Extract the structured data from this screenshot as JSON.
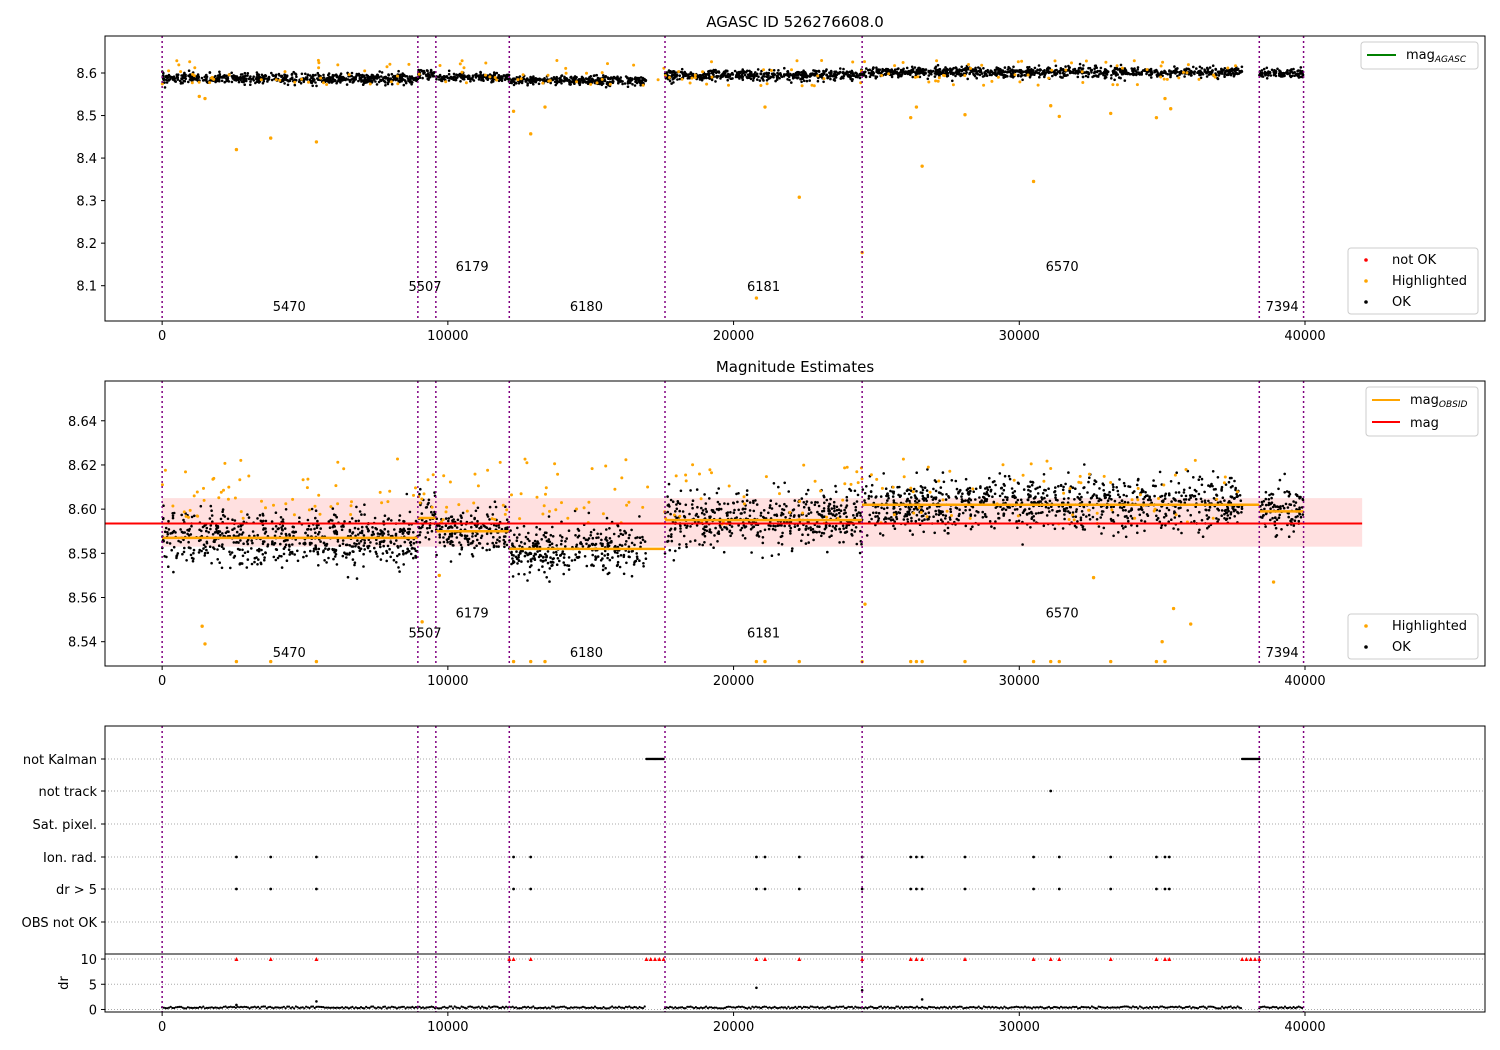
{
  "chart_data": [
    {
      "type": "scatter",
      "title": "AGASC ID 526276608.0",
      "xlim": [
        -2000,
        46300
      ],
      "ylim": [
        8.017,
        8.687
      ],
      "x_ticks": [
        0,
        10000,
        20000,
        30000,
        40000
      ],
      "y_ticks": [
        8.1,
        8.2,
        8.3,
        8.4,
        8.5,
        8.6
      ],
      "obsid_boundaries": [
        0,
        8950,
        9580,
        12150,
        17600,
        24500,
        38400,
        39950
      ],
      "obsid_labels": [
        {
          "obsid": "5470",
          "x": 4450,
          "y": 8.04
        },
        {
          "obsid": "5507",
          "x": 9200,
          "y": 8.087
        },
        {
          "obsid": "6179",
          "x": 10850,
          "y": 8.135
        },
        {
          "obsid": "6180",
          "x": 14850,
          "y": 8.04
        },
        {
          "obsid": "6181",
          "x": 21050,
          "y": 8.087
        },
        {
          "obsid": "6570",
          "x": 31500,
          "y": 8.135
        },
        {
          "obsid": "7394",
          "x": 39200,
          "y": 8.04
        }
      ],
      "series": [
        {
          "name": "not OK",
          "color": "#ff0000",
          "points": []
        },
        {
          "name": "Highlighted",
          "color": "#ffa500",
          "points": [
            [
              2600,
              8.42
            ],
            [
              3800,
              8.447
            ],
            [
              5400,
              8.438
            ],
            [
              1300,
              8.545
            ],
            [
              1500,
              8.54
            ],
            [
              12300,
              8.51
            ],
            [
              12900,
              8.457
            ],
            [
              13400,
              8.52
            ],
            [
              21100,
              8.52
            ],
            [
              22300,
              8.308
            ],
            [
              20800,
              8.071
            ],
            [
              24500,
              8.178
            ],
            [
              26200,
              8.495
            ],
            [
              26400,
              8.52
            ],
            [
              26600,
              8.381
            ],
            [
              28100,
              8.502
            ],
            [
              30500,
              8.345
            ],
            [
              31100,
              8.523
            ],
            [
              31400,
              8.498
            ],
            [
              33200,
              8.505
            ],
            [
              34800,
              8.495
            ],
            [
              35100,
              8.54
            ],
            [
              35300,
              8.516
            ]
          ]
        },
        {
          "name": "OK",
          "color": "#000000",
          "segments": [
            {
              "x0": 0,
              "x1": 8950,
              "mean": 8.587,
              "spread": 0.01
            },
            {
              "x0": 8950,
              "x1": 9580,
              "mean": 8.597,
              "spread": 0.01
            },
            {
              "x0": 9580,
              "x1": 12150,
              "mean": 8.59,
              "spread": 0.008
            },
            {
              "x0": 12150,
              "x1": 16950,
              "mean": 8.582,
              "spread": 0.009
            },
            {
              "x0": 17600,
              "x1": 24500,
              "mean": 8.595,
              "spread": 0.01
            },
            {
              "x0": 24500,
              "x1": 37800,
              "mean": 8.602,
              "spread": 0.01
            },
            {
              "x0": 38400,
              "x1": 39950,
              "mean": 8.599,
              "spread": 0.009
            }
          ]
        }
      ],
      "legends": [
        {
          "position": "upper-right",
          "entries": [
            "mag_AGASC"
          ]
        },
        {
          "position": "lower-right",
          "entries": [
            "not OK",
            "Highlighted",
            "OK"
          ]
        }
      ],
      "lines": [
        {
          "name": "mag_AGASC",
          "color": "#008000"
        }
      ]
    },
    {
      "type": "scatter",
      "title": "Magnitude Estimates",
      "xlim": [
        -2000,
        46300
      ],
      "ylim": [
        8.529,
        8.658
      ],
      "x_ticks": [
        0,
        10000,
        20000,
        30000,
        40000
      ],
      "y_ticks": [
        8.54,
        8.56,
        8.58,
        8.6,
        8.62,
        8.64
      ],
      "obsid_boundaries": [
        0,
        8950,
        9580,
        12150,
        17600,
        24500,
        38400,
        39950
      ],
      "obsid_labels": [
        {
          "obsid": "5470",
          "x": 4450,
          "y": 8.533
        },
        {
          "obsid": "5507",
          "x": 9200,
          "y": 8.542
        },
        {
          "obsid": "6179",
          "x": 10850,
          "y": 8.551
        },
        {
          "obsid": "6180",
          "x": 14850,
          "y": 8.533
        },
        {
          "obsid": "6181",
          "x": 21050,
          "y": 8.542
        },
        {
          "obsid": "6570",
          "x": 31500,
          "y": 8.551
        },
        {
          "obsid": "7394",
          "x": 39200,
          "y": 8.533
        }
      ],
      "mag": 8.5935,
      "mag_band": [
        8.583,
        8.605
      ],
      "mag_band_xlim": [
        0,
        42000
      ],
      "mag_obsid": [
        {
          "x0": 0,
          "x1": 8950,
          "value": 8.587
        },
        {
          "x0": 8950,
          "x1": 9580,
          "value": 8.596
        },
        {
          "x0": 9580,
          "x1": 12150,
          "value": 8.59
        },
        {
          "x0": 12150,
          "x1": 17600,
          "value": 8.582
        },
        {
          "x0": 17600,
          "x1": 24500,
          "value": 8.595
        },
        {
          "x0": 24500,
          "x1": 38400,
          "value": 8.602
        },
        {
          "x0": 38400,
          "x1": 39950,
          "value": 8.599
        }
      ],
      "series": [
        {
          "name": "Highlighted",
          "color": "#ffa500",
          "points": [
            [
              1400,
              8.547
            ],
            [
              1500,
              8.539
            ],
            [
              2600,
              8.531
            ],
            [
              3800,
              8.531
            ],
            [
              5400,
              8.531
            ],
            [
              9100,
              8.549
            ],
            [
              9700,
              8.57
            ],
            [
              12300,
              8.531
            ],
            [
              12900,
              8.531
            ],
            [
              13400,
              8.531
            ],
            [
              20800,
              8.531
            ],
            [
              21100,
              8.531
            ],
            [
              22300,
              8.531
            ],
            [
              24500,
              8.531
            ],
            [
              24600,
              8.557
            ],
            [
              26200,
              8.531
            ],
            [
              26400,
              8.531
            ],
            [
              26600,
              8.531
            ],
            [
              28100,
              8.531
            ],
            [
              30500,
              8.531
            ],
            [
              31100,
              8.531
            ],
            [
              31400,
              8.531
            ],
            [
              33200,
              8.531
            ],
            [
              34800,
              8.531
            ],
            [
              35100,
              8.531
            ],
            [
              35000,
              8.54
            ],
            [
              35400,
              8.555
            ],
            [
              36000,
              8.548
            ],
            [
              32600,
              8.569
            ],
            [
              38900,
              8.567
            ]
          ]
        },
        {
          "name": "OK",
          "color": "#000000",
          "segments": [
            {
              "x0": 0,
              "x1": 8950,
              "mean": 8.587,
              "spread": 0.01
            },
            {
              "x0": 8950,
              "x1": 9580,
              "mean": 8.597,
              "spread": 0.01
            },
            {
              "x0": 9580,
              "x1": 12150,
              "mean": 8.59,
              "spread": 0.008
            },
            {
              "x0": 12150,
              "x1": 16950,
              "mean": 8.582,
              "spread": 0.009
            },
            {
              "x0": 17600,
              "x1": 24500,
              "mean": 8.595,
              "spread": 0.01
            },
            {
              "x0": 24500,
              "x1": 37800,
              "mean": 8.602,
              "spread": 0.01
            },
            {
              "x0": 38400,
              "x1": 39950,
              "mean": 8.599,
              "spread": 0.009
            }
          ]
        }
      ],
      "legends": [
        {
          "position": "upper-right",
          "entries": [
            "mag_OBSID",
            "mag"
          ]
        },
        {
          "position": "lower-right",
          "entries": [
            "Highlighted",
            "OK"
          ]
        }
      ],
      "lines": [
        {
          "name": "mag_OBSID",
          "color": "#ffa500"
        },
        {
          "name": "mag",
          "color": "#ff0000"
        }
      ]
    },
    {
      "type": "scatter",
      "title": "",
      "xlim": [
        -2000,
        46300
      ],
      "x_ticks": [
        0,
        10000,
        20000,
        30000,
        40000
      ],
      "flag_rows": [
        "not Kalman",
        "not track",
        "Sat. pixel.",
        "Ion. rad.",
        "dr > 5",
        "OBS not OK"
      ],
      "obsid_boundaries": [
        0,
        8950,
        9580,
        12150,
        17600,
        24500,
        38400,
        39950
      ],
      "flags": {
        "not Kalman": [
          [
            16950,
            17550
          ],
          [
            37800,
            38400
          ]
        ],
        "not track": [
          31100
        ],
        "Sat. pixel.": [],
        "Ion. rad.": [
          2600,
          3800,
          5400,
          12300,
          12900,
          20800,
          21100,
          22300,
          24500,
          26200,
          26400,
          26600,
          28100,
          30500,
          31400,
          33200,
          34800,
          35100,
          35250
        ],
        "dr > 5": [
          2600,
          3800,
          5400,
          12300,
          12900,
          20800,
          21100,
          22300,
          24500,
          26200,
          26400,
          26600,
          28100,
          30500,
          31400,
          33200,
          34800,
          35100,
          35250
        ],
        "OBS not OK": []
      },
      "dr_panel": {
        "ylabel": "dr",
        "y_ticks": [
          0,
          5,
          10
        ],
        "ylim": [
          -0.5,
          11
        ],
        "clipped_x": [
          2600,
          3800,
          5400,
          12150,
          12300,
          12900,
          16950,
          17100,
          17250,
          17400,
          17550,
          20800,
          21100,
          22300,
          24500,
          26200,
          26400,
          26600,
          28100,
          30500,
          31100,
          31400,
          33200,
          34800,
          35100,
          35250,
          37800,
          37950,
          38100,
          38250,
          38400
        ],
        "outliers": [
          [
            20800,
            4.3
          ],
          [
            24500,
            3.8
          ],
          [
            5400,
            1.6
          ],
          [
            26600,
            2.0
          ],
          [
            2600,
            0.9
          ]
        ]
      }
    }
  ]
}
